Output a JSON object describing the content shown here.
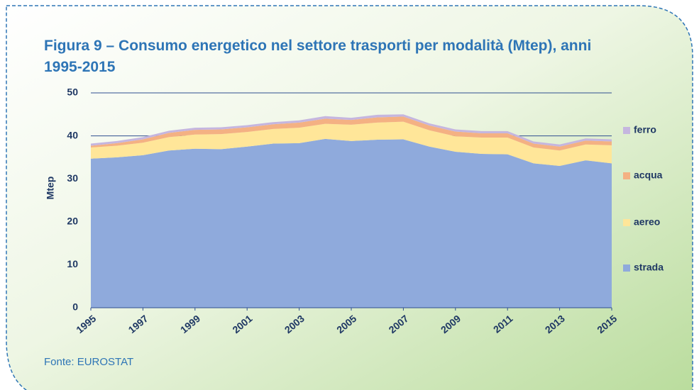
{
  "chart_data": {
    "type": "area",
    "stacked": true,
    "title": "Figura 9 – Consumo energetico nel settore trasporti per modalità (Mtep), anni 1995-2015",
    "source": "Fonte: EUROSTAT",
    "y_label": "Mtep",
    "x": [
      1995,
      1996,
      1997,
      1998,
      1999,
      2000,
      2001,
      2002,
      2003,
      2004,
      2005,
      2006,
      2007,
      2008,
      2009,
      2010,
      2011,
      2012,
      2013,
      2014,
      2015
    ],
    "xlim": [
      1995,
      2015
    ],
    "xticks": [
      1995,
      1997,
      1999,
      2001,
      2003,
      2005,
      2007,
      2009,
      2011,
      2013,
      2015
    ],
    "ylim": [
      0,
      50
    ],
    "yticks": [
      0,
      10,
      20,
      30,
      40,
      50
    ],
    "grid": true,
    "legend": "right",
    "series": [
      {
        "name": "strada",
        "color": "#8faadc",
        "values": [
          34.7,
          35.0,
          35.5,
          36.6,
          37.0,
          36.9,
          37.5,
          38.2,
          38.3,
          39.3,
          38.8,
          39.1,
          39.2,
          37.5,
          36.3,
          35.8,
          35.7,
          33.6,
          33.0,
          34.3,
          33.6
        ]
      },
      {
        "name": "aereo",
        "color": "#ffe699",
        "values": [
          2.6,
          2.7,
          2.9,
          3.1,
          3.3,
          3.5,
          3.4,
          3.4,
          3.6,
          3.5,
          3.8,
          4.0,
          4.1,
          3.8,
          3.6,
          3.8,
          3.9,
          3.7,
          3.6,
          3.7,
          4.2
        ]
      },
      {
        "name": "acqua",
        "color": "#f4b183",
        "values": [
          0.4,
          0.6,
          0.8,
          1.0,
          1.1,
          1.1,
          1.1,
          1.1,
          1.2,
          1.2,
          1.1,
          1.2,
          1.2,
          1.1,
          1.1,
          1.0,
          1.0,
          0.9,
          0.9,
          0.9,
          0.9
        ]
      },
      {
        "name": "ferro",
        "color": "#c5b6df",
        "values": [
          0.5,
          0.5,
          0.5,
          0.5,
          0.5,
          0.5,
          0.5,
          0.5,
          0.5,
          0.6,
          0.5,
          0.6,
          0.5,
          0.5,
          0.5,
          0.5,
          0.5,
          0.5,
          0.5,
          0.5,
          0.5
        ]
      }
    ]
  }
}
